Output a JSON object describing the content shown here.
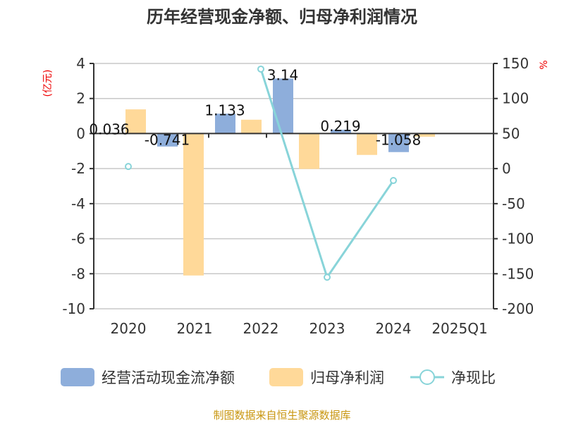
{
  "chart_data": {
    "type": "bar",
    "title": "历年经营现金净额、归母净利润情况",
    "categories": [
      "2020",
      "2021",
      "2022",
      "2023",
      "2024",
      "2025Q1"
    ],
    "left_axis": {
      "unit": "(亿元)",
      "ylim": [
        -10,
        4
      ],
      "ticks": [
        4,
        2,
        0,
        -2,
        -4,
        -6,
        -8,
        -10
      ]
    },
    "right_axis": {
      "unit": "%",
      "ylim": [
        -200,
        150
      ],
      "ticks": [
        150,
        100,
        50,
        0,
        -50,
        -100,
        -150,
        -200
      ]
    },
    "grid": true,
    "legend_position": "bottom",
    "series": [
      {
        "name": "经营活动现金流净额",
        "type": "bar",
        "axis": "left",
        "color": "#8eaedb",
        "values": [
          0.036,
          -0.741,
          1.133,
          3.14,
          0.219,
          -1.058
        ],
        "labels": [
          "0.036",
          "-0.741",
          "1.133",
          "3.14",
          "0.219",
          "-1.058"
        ]
      },
      {
        "name": "归母净利润",
        "type": "bar",
        "axis": "left",
        "color": "#ffd999",
        "values": [
          1.38,
          -8.1,
          0.79,
          -2.02,
          -1.22,
          -0.18
        ]
      },
      {
        "name": "净现比",
        "type": "line",
        "axis": "right",
        "color": "#88d4d9",
        "values": [
          3,
          null,
          142,
          -155,
          -17,
          null
        ]
      }
    ]
  },
  "footer": "制图数据来自恒生聚源数据库"
}
